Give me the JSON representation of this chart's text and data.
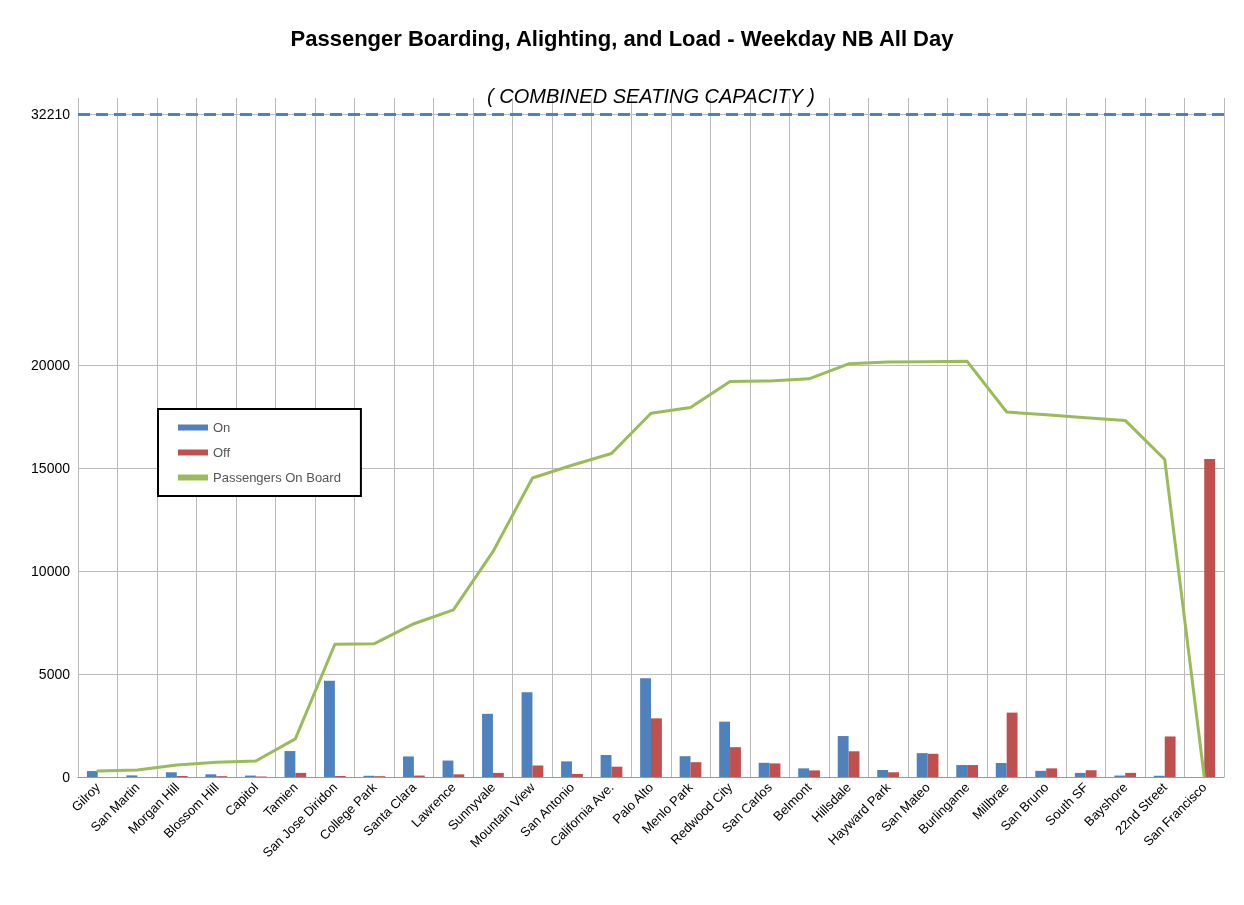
{
  "chart_data": {
    "type": "bar",
    "title": "Passenger Boarding, Alighting, and Load - Weekday NB All Day",
    "categories": [
      "Gilroy",
      "San Martin",
      "Morgan Hill",
      "Blossom Hill",
      "Capitol",
      "Tamien",
      "San Jose Diridon",
      "College Park",
      "Santa Clara",
      "Lawrence",
      "Sunnyvale",
      "Mountain View",
      "San Antonio",
      "California Ave.",
      "Palo Alto",
      "Menlo Park",
      "Redwood City",
      "San Carlos",
      "Belmont",
      "Hillsdale",
      "Hayward Park",
      "San Mateo",
      "Burlingame",
      "Millbrae",
      "San Bruno",
      "South SF",
      "Bayshore",
      "22nd Street",
      "San Francisco"
    ],
    "series": [
      {
        "name": "On",
        "color": "#4f81bd",
        "values": [
          290,
          80,
          230,
          130,
          70,
          1260,
          4680,
          60,
          1000,
          800,
          3070,
          4120,
          760,
          1070,
          4800,
          1010,
          2690,
          690,
          420,
          1990,
          340,
          1160,
          580,
          680,
          300,
          200,
          70,
          60,
          0
        ]
      },
      {
        "name": "Off",
        "color": "#c0504d",
        "values": [
          0,
          0,
          50,
          40,
          30,
          200,
          50,
          40,
          70,
          130,
          200,
          560,
          150,
          500,
          2850,
          720,
          1450,
          660,
          320,
          1250,
          230,
          1130,
          580,
          3130,
          420,
          330,
          200,
          1970,
          15450
        ]
      },
      {
        "name": "Passengers On Board",
        "type": "line",
        "color": "#9bbb59",
        "values": [
          290,
          340,
          580,
          720,
          780,
          1850,
          6450,
          6480,
          7450,
          8120,
          10950,
          14530,
          15150,
          15720,
          17680,
          17960,
          19220,
          19250,
          19350,
          20080,
          20170,
          20180,
          20200,
          17740,
          17600,
          17460,
          17330,
          15430,
          0
        ]
      }
    ],
    "ylim": [
      0,
      33000
    ],
    "yticks": [
      0,
      5000,
      10000,
      15000,
      20000,
      {
        "value": 32210,
        "label": "32210"
      }
    ],
    "ref_lines": [
      {
        "axis": "y",
        "value": 32210,
        "label": "( COMBINED SEATING CAPACITY )",
        "color": "#4f81bd",
        "line_style": "dashed"
      }
    ],
    "grid": true,
    "legend": "left",
    "marker": "none"
  }
}
